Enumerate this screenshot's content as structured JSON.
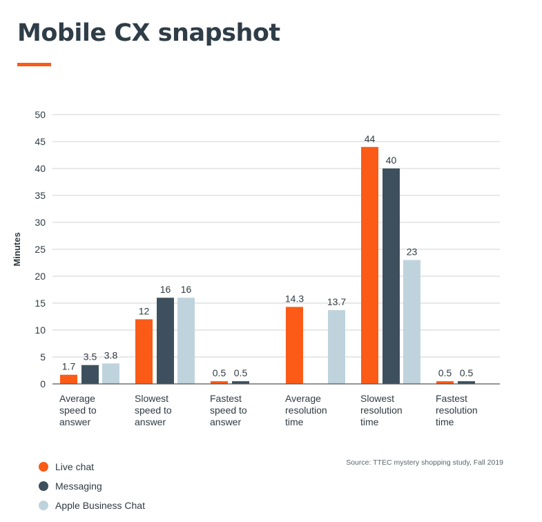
{
  "title": "Mobile CX snapshot",
  "colors": {
    "accent": "#fb5a17",
    "series": [
      "#fb5a17",
      "#3e505d",
      "#bfd3dd"
    ],
    "grid": "#d2d2d2",
    "axis": "#555555"
  },
  "source": "Source:  TTEC mystery shopping study, Fall 2019",
  "chart_data": {
    "type": "bar",
    "ylabel": "Minutes",
    "xlabel": "",
    "ylim": [
      0,
      50
    ],
    "yticks": [
      0,
      5,
      10,
      15,
      20,
      25,
      30,
      35,
      40,
      45,
      50
    ],
    "grid": true,
    "legend_position": "bottom-left",
    "categories": [
      [
        "Average",
        "speed to",
        "answer"
      ],
      [
        "Slowest",
        "speed to",
        "answer"
      ],
      [
        "Fastest",
        "speed to",
        "answer"
      ],
      [
        "Average",
        "resolution",
        "time"
      ],
      [
        "Slowest",
        "resolution",
        "time"
      ],
      [
        "Fastest",
        "resolution",
        "time"
      ]
    ],
    "series": [
      {
        "name": "Live chat",
        "values": [
          1.7,
          12,
          0.5,
          14.3,
          44,
          0.5
        ],
        "labels": [
          "1.7",
          "12",
          "0.5",
          "14.3",
          "44",
          "0.5"
        ]
      },
      {
        "name": "Messaging",
        "values": [
          3.5,
          16,
          0.5,
          null,
          40,
          0.5
        ],
        "labels": [
          "3.5",
          "16",
          "0.5",
          null,
          "40",
          "0.5"
        ]
      },
      {
        "name": "Apple Business Chat",
        "values": [
          3.8,
          16,
          null,
          13.7,
          23,
          null
        ],
        "labels": [
          "3.8",
          "16",
          null,
          "13.7",
          "23",
          null
        ]
      }
    ]
  }
}
